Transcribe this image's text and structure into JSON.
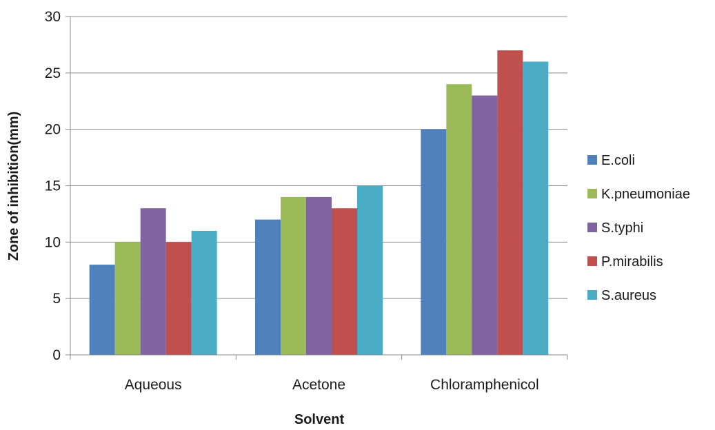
{
  "chart_data": {
    "type": "bar",
    "title": "",
    "xlabel": "Solvent",
    "ylabel": "Zone of inhibition(mm)",
    "ylim": [
      0,
      30
    ],
    "yticks": [
      0,
      5,
      10,
      15,
      20,
      25,
      30
    ],
    "grid": true,
    "legend_position": "right",
    "categories": [
      "Aqueous",
      "Acetone",
      "Chloramphenicol"
    ],
    "series": [
      {
        "name": "E.coli",
        "color": "#4F81BD",
        "values": [
          8,
          12,
          20
        ]
      },
      {
        "name": "K.pneumoniae",
        "color": "#9BBB59",
        "values": [
          10,
          14,
          24
        ]
      },
      {
        "name": "S.typhi",
        "color": "#8064A2",
        "values": [
          13,
          14,
          23
        ]
      },
      {
        "name": "P.mirabilis",
        "color": "#C0504D",
        "values": [
          10,
          13,
          27
        ]
      },
      {
        "name": "S.aureus",
        "color": "#4BACC6",
        "values": [
          11,
          15,
          26
        ]
      }
    ]
  }
}
